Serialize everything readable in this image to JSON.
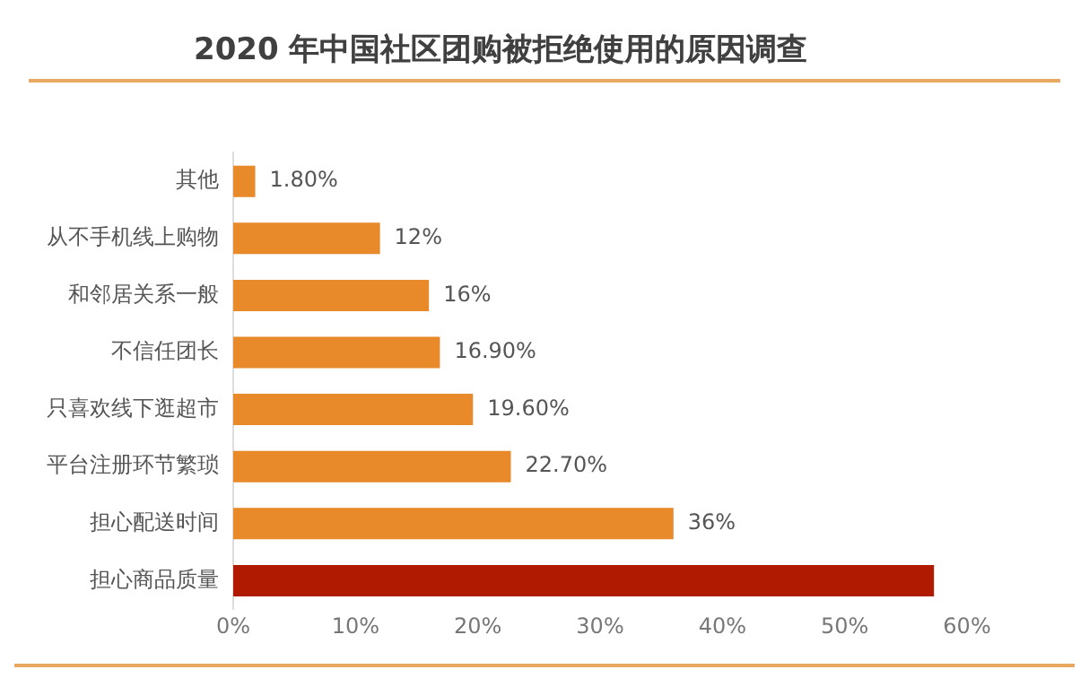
{
  "chart_data": {
    "type": "bar",
    "orientation": "horizontal",
    "title": "2020 年中国社区团购被拒绝使用的原因调查",
    "categories": [
      "其他",
      "从不手机线上购物",
      "和邻居关系一般",
      "不信任团长",
      "只喜欢线下逛超市",
      "平台注册环节繁琐",
      "担心配送时间",
      "担心商品质量"
    ],
    "values": [
      1.8,
      12,
      16,
      16.9,
      19.6,
      22.7,
      36,
      57.3
    ],
    "colors": [
      "#e8892a",
      "#e8892a",
      "#e8892a",
      "#e8892a",
      "#e8892a",
      "#e8892a",
      "#e8892a",
      "#b01a00"
    ],
    "value_labels": [
      "1.80%",
      "12%",
      "16%",
      "16.90%",
      "19.60%",
      "22.70%",
      "36%",
      null
    ],
    "xlim": [
      0,
      60
    ],
    "xticks": [
      {
        "value": 0,
        "label": "0%"
      },
      {
        "value": 10,
        "label": "10%"
      },
      {
        "value": 20,
        "label": "20%"
      },
      {
        "value": 30,
        "label": "30%"
      },
      {
        "value": 40,
        "label": "40%"
      },
      {
        "value": 50,
        "label": "50%"
      },
      {
        "value": 60,
        "label": "60%"
      }
    ],
    "grid": false,
    "legend": false
  }
}
